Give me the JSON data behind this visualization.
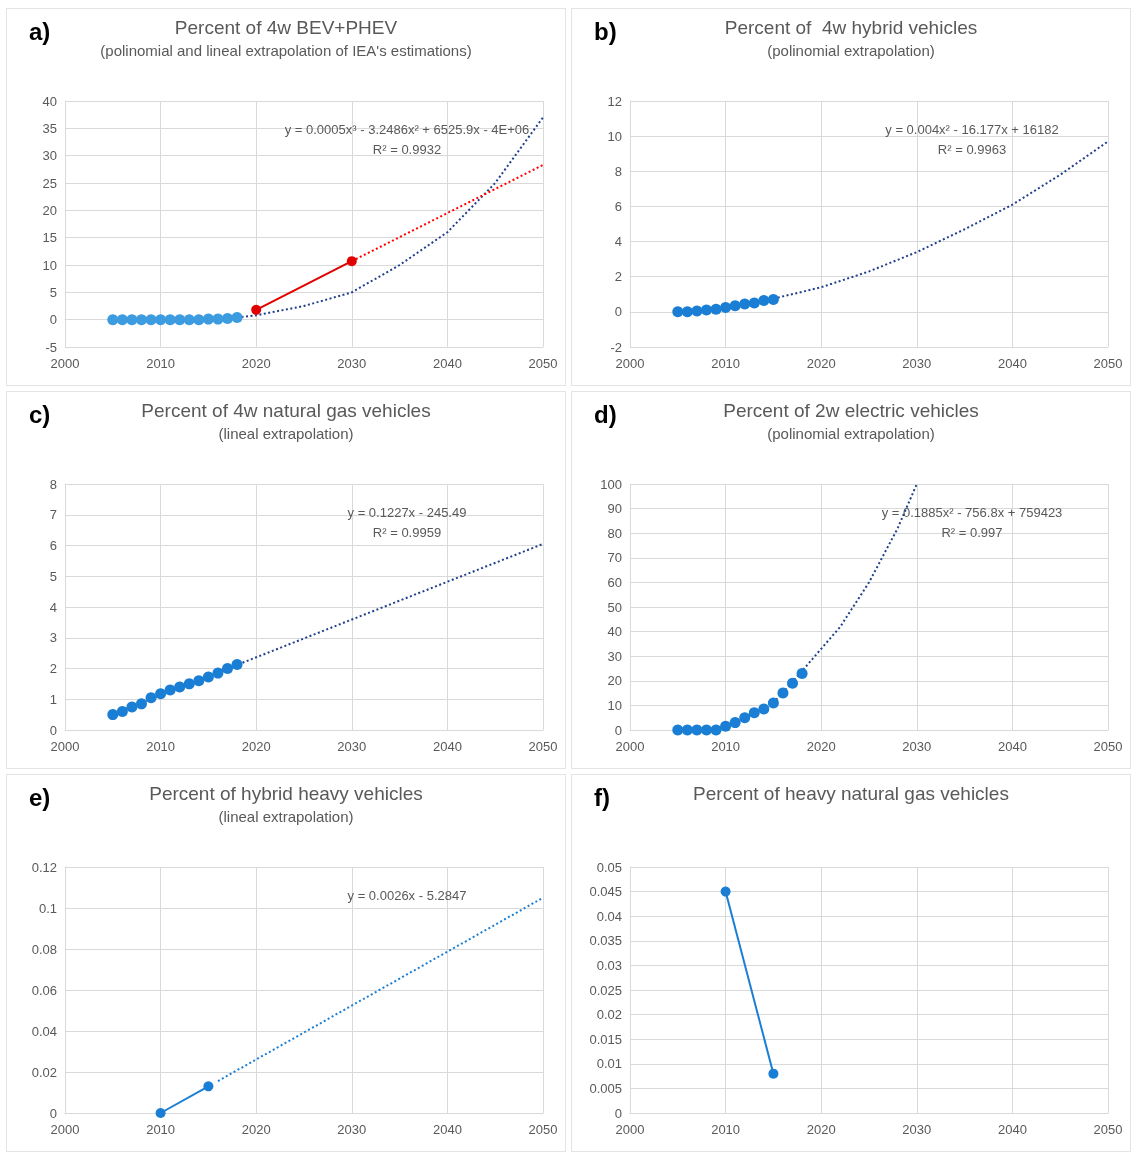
{
  "chart_data": [
    {
      "type": "line",
      "title": "Percent of 4w BEV+PHEV",
      "subtitle": "(polinomial and lineal extrapolation of IEA's estimations)",
      "annotations": [
        "a)",
        "y = 0.0005x³ - 3.2486x² + 6525.9x - 4E+06",
        "R² = 0.9932"
      ],
      "xlim": [
        2000,
        2050
      ],
      "xticks": [
        2000,
        2010,
        2020,
        2030,
        2040,
        2050
      ],
      "ylim": [
        -5,
        40
      ],
      "yticks": [
        -5,
        0,
        5,
        10,
        15,
        20,
        25,
        30,
        35,
        40
      ],
      "grid": true,
      "series": [
        {
          "color": "#203f8c",
          "marker": "none",
          "line_style": "dotted",
          "x": [
            2018,
            2020,
            2025,
            2030,
            2035,
            2040,
            2045,
            2050
          ],
          "values": [
            0.4,
            0.8,
            2.5,
            5,
            10,
            16,
            25,
            37
          ]
        },
        {
          "color": "#ff0000",
          "marker": "none",
          "line_style": "dotted",
          "x": [
            2030,
            2050
          ],
          "values": [
            10.7,
            28.3
          ]
        },
        {
          "color": "#e00000",
          "marker": "circle",
          "line_style": "solid",
          "x": [
            2020,
            2030
          ],
          "values": [
            1.8,
            10.7
          ]
        },
        {
          "type": "scatter",
          "color": "#3d9be0",
          "marker": "circle",
          "x": [
            2005,
            2006,
            2007,
            2008,
            2009,
            2010,
            2011,
            2012,
            2013,
            2014,
            2015,
            2016,
            2017,
            2018
          ],
          "values": [
            0,
            0,
            0,
            0,
            0,
            0,
            0,
            0,
            0,
            0,
            0.1,
            0.1,
            0.2,
            0.4
          ]
        }
      ]
    },
    {
      "type": "line",
      "title": "Percent of  4w hybrid vehicles",
      "subtitle": "(polinomial extrapolation)",
      "annotations": [
        "b)",
        "y = 0.004x² - 16.177x + 16182",
        "R² = 0.9963"
      ],
      "xlim": [
        2000,
        2050
      ],
      "xticks": [
        2000,
        2010,
        2020,
        2030,
        2040,
        2050
      ],
      "ylim": [
        -2,
        12
      ],
      "yticks": [
        -2,
        0,
        2,
        4,
        6,
        8,
        10,
        12
      ],
      "grid": true,
      "series": [
        {
          "color": "#203f8c",
          "marker": "none",
          "line_style": "dotted",
          "x": [
            2015,
            2020,
            2025,
            2030,
            2035,
            2040,
            2045,
            2050
          ],
          "values": [
            0.75,
            1.4,
            2.3,
            3.4,
            4.7,
            6.1,
            7.8,
            9.7
          ]
        },
        {
          "type": "scatter",
          "color": "#1a7fd4",
          "marker": "circle",
          "x": [
            2005,
            2006,
            2007,
            2008,
            2009,
            2010,
            2011,
            2012,
            2013,
            2014,
            2015
          ],
          "values": [
            0,
            0,
            0.05,
            0.1,
            0.15,
            0.25,
            0.35,
            0.45,
            0.5,
            0.65,
            0.7
          ]
        }
      ]
    },
    {
      "type": "line",
      "title": "Percent of 4w natural gas vehicles",
      "subtitle": "(lineal extrapolation)",
      "annotations": [
        "c)",
        "y = 0.1227x - 245.49",
        "R² = 0.9959"
      ],
      "xlim": [
        2000,
        2050
      ],
      "xticks": [
        2000,
        2010,
        2020,
        2030,
        2040,
        2050
      ],
      "ylim": [
        0,
        8
      ],
      "yticks": [
        0,
        1,
        2,
        3,
        4,
        5,
        6,
        7,
        8
      ],
      "grid": true,
      "series": [
        {
          "color": "#203f8c",
          "marker": "none",
          "line_style": "dotted",
          "x": [
            2005,
            2050
          ],
          "values": [
            0.52,
            6.05
          ]
        },
        {
          "type": "scatter",
          "color": "#1a7fd4",
          "marker": "circle",
          "x": [
            2005,
            2006,
            2007,
            2008,
            2009,
            2010,
            2011,
            2012,
            2013,
            2014,
            2015,
            2016,
            2017,
            2018
          ],
          "values": [
            0.5,
            0.6,
            0.75,
            0.85,
            1.05,
            1.18,
            1.3,
            1.4,
            1.5,
            1.6,
            1.72,
            1.85,
            2.0,
            2.13
          ]
        }
      ]
    },
    {
      "type": "line",
      "title": "Percent of 2w electric vehicles",
      "subtitle": "(polinomial extrapolation)",
      "annotations": [
        "d)",
        "y = 0.1885x² - 756.8x + 759423",
        "R² = 0.997"
      ],
      "xlim": [
        2000,
        2050
      ],
      "xticks": [
        2000,
        2010,
        2020,
        2030,
        2040,
        2050
      ],
      "ylim": [
        0,
        100
      ],
      "yticks": [
        0,
        10,
        20,
        30,
        40,
        50,
        60,
        70,
        80,
        90,
        100
      ],
      "grid": true,
      "series": [
        {
          "color": "#203f8c",
          "marker": "none",
          "line_style": "dotted",
          "x": [
            2009,
            2012,
            2015,
            2018,
            2020,
            2022,
            2025,
            2028,
            2030
          ],
          "values": [
            0,
            5,
            11,
            24,
            33,
            42,
            60,
            82,
            100
          ]
        },
        {
          "type": "scatter",
          "color": "#1a7fd4",
          "marker": "circle",
          "x": [
            2005,
            2006,
            2007,
            2008,
            2009,
            2010,
            2011,
            2012,
            2013,
            2014,
            2015,
            2016,
            2017,
            2018
          ],
          "values": [
            0,
            0,
            0,
            0,
            0,
            1.5,
            3,
            5,
            7,
            8.5,
            11,
            15,
            19,
            23
          ]
        }
      ]
    },
    {
      "type": "line",
      "title": "Percent of hybrid heavy vehicles",
      "subtitle": "(lineal extrapolation)",
      "annotations": [
        "e)",
        "y = 0.0026x - 5.2847"
      ],
      "xlim": [
        2000,
        2050
      ],
      "xticks": [
        2000,
        2010,
        2020,
        2030,
        2040,
        2050
      ],
      "ylim": [
        0,
        0.12
      ],
      "yticks": [
        0,
        0.02,
        0.04,
        0.06,
        0.08,
        0.1,
        0.12
      ],
      "grid": true,
      "series": [
        {
          "color": "#1a7fd4",
          "marker": "none",
          "line_style": "dotted",
          "x": [
            2016,
            2050
          ],
          "values": [
            0.0156,
            0.105
          ]
        },
        {
          "color": "#1a7fd4",
          "marker": "circle",
          "line_style": "solid",
          "x": [
            2010,
            2015
          ],
          "values": [
            0,
            0.013
          ]
        }
      ]
    },
    {
      "type": "line",
      "title": "Percent of heavy natural gas vehicles",
      "annotations": [
        "f)"
      ],
      "xlim": [
        2000,
        2050
      ],
      "xticks": [
        2000,
        2010,
        2020,
        2030,
        2040,
        2050
      ],
      "ylim": [
        0,
        0.05
      ],
      "yticks": [
        0,
        0.005,
        0.01,
        0.015,
        0.02,
        0.025,
        0.03,
        0.035,
        0.04,
        0.045,
        0.05
      ],
      "grid": true,
      "series": [
        {
          "color": "#1a7fd4",
          "marker": "circle",
          "line_style": "solid",
          "x": [
            2010,
            2015
          ],
          "values": [
            0.045,
            0.008
          ]
        }
      ]
    }
  ]
}
